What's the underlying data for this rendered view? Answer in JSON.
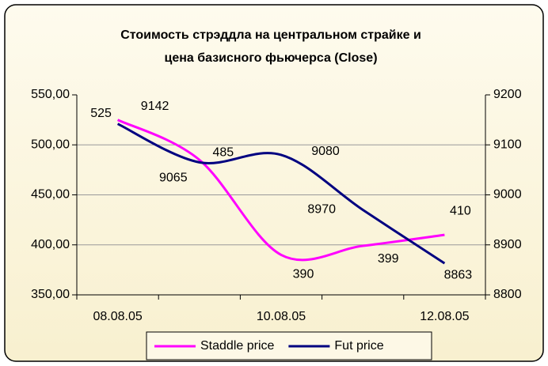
{
  "chart_data": {
    "type": "line",
    "title": [
      "Стоимость стрэддла на центральном страйке и",
      "цена базисного фьючерса (Close)"
    ],
    "categories": [
      "08.08.05",
      null,
      "10.08.05",
      null,
      "12.08.05"
    ],
    "series": [
      {
        "name": "Staddle price",
        "color": "#ff00ff",
        "axis": "y",
        "values": [
          525,
          485,
          390,
          399,
          410
        ]
      },
      {
        "name": "Fut price",
        "color": "#000080",
        "axis": "y2",
        "values": [
          9142,
          9065,
          9080,
          8970,
          8863
        ]
      }
    ],
    "ylim": [
      350,
      550
    ],
    "yticks": [
      {
        "value": 350,
        "label": "350,00"
      },
      {
        "value": 400,
        "label": "400,00"
      },
      {
        "value": 450,
        "label": "450,00"
      },
      {
        "value": 500,
        "label": "500,00"
      },
      {
        "value": 550,
        "label": "550,00"
      }
    ],
    "y2lim": [
      8800,
      9200
    ],
    "y2ticks": [
      8800,
      8900,
      9000,
      9100,
      9200
    ],
    "grid": true,
    "legend": "bottom"
  }
}
